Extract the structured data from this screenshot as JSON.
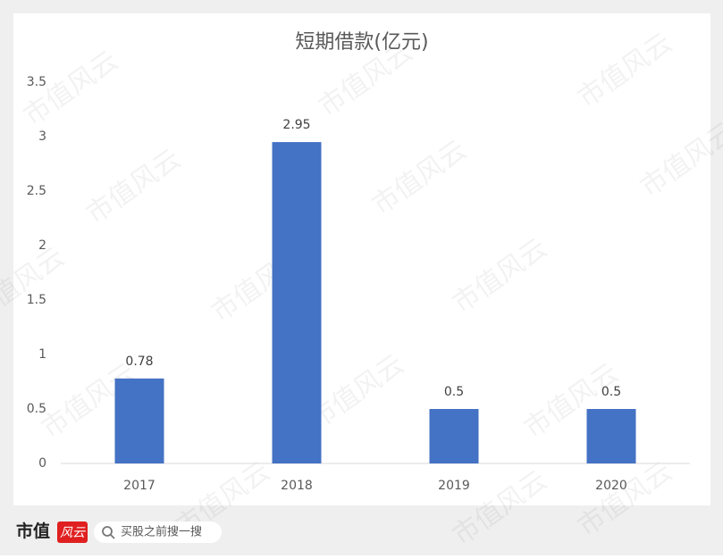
{
  "chart_data": {
    "type": "bar",
    "title": "短期借款(亿元)",
    "categories": [
      "2017",
      "2018",
      "2019",
      "2020"
    ],
    "values": [
      0.78,
      2.95,
      0.5,
      0.5
    ],
    "color": "#4472c4",
    "ylim": [
      0,
      3.5
    ],
    "yticks": [
      0,
      0.5,
      1,
      1.5,
      2,
      2.5,
      3,
      3.5
    ],
    "grid": false,
    "data_labels": true
  },
  "watermark": "市值风云",
  "footer": {
    "logo": "市值",
    "logo_badge": "风云",
    "search_placeholder": "买股之前搜一搜"
  }
}
